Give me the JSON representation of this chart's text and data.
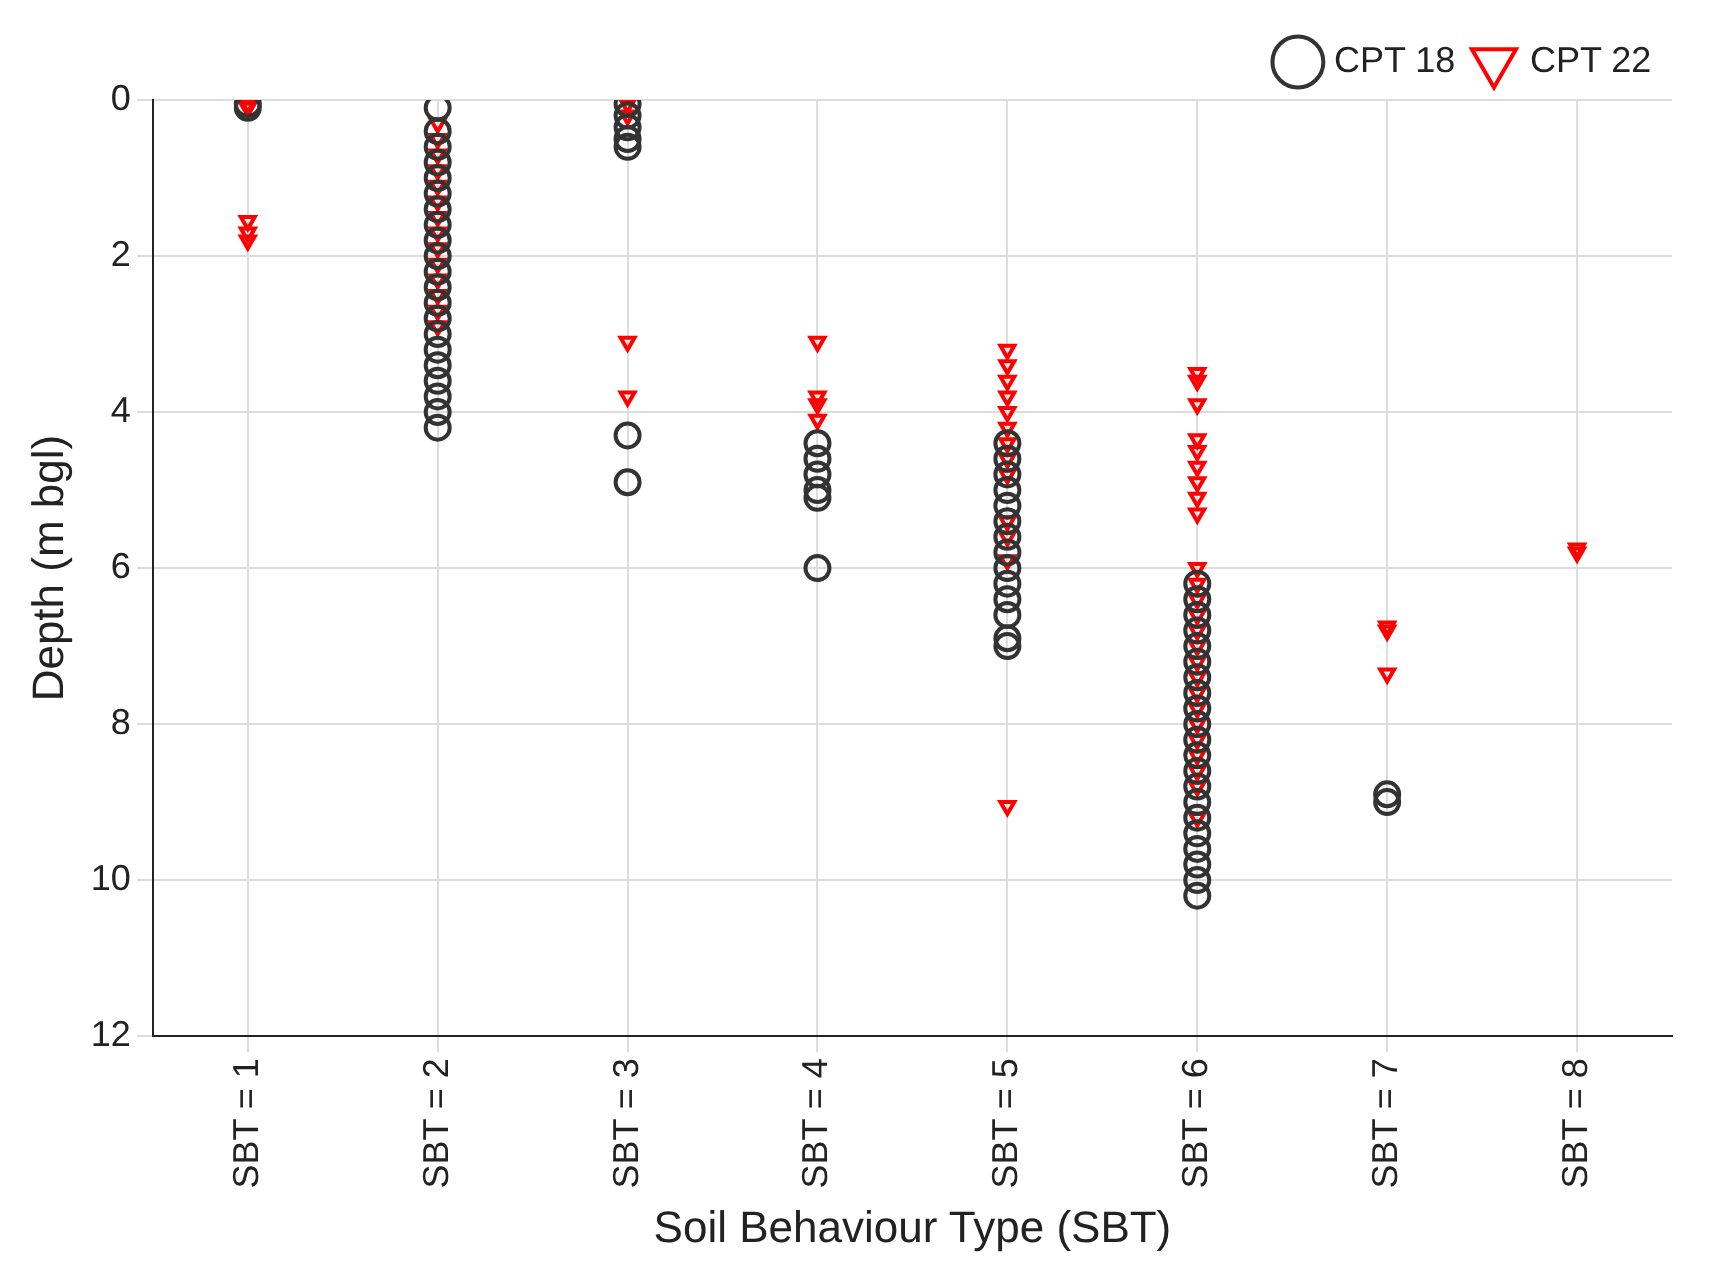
{
  "chart_data": {
    "type": "scatter",
    "xlabel": "Soil Behaviour Type (SBT)",
    "ylabel": "Depth (m bgl)",
    "categories": [
      "SBT = 1",
      "SBT = 2",
      "SBT = 3",
      "SBT = 4",
      "SBT = 5",
      "SBT = 6",
      "SBT = 7",
      "SBT = 8"
    ],
    "ylim": [
      12,
      0
    ],
    "yticks": [
      0,
      2,
      4,
      6,
      8,
      10,
      12
    ],
    "grid": true,
    "legend": "top right",
    "series": [
      {
        "name": "CPT 18",
        "color": "#333333",
        "marker": "circle",
        "x": [
          "SBT = 1",
          "SBT = 1",
          "SBT = 2",
          "SBT = 2",
          "SBT = 2",
          "SBT = 2",
          "SBT = 2",
          "SBT = 2",
          "SBT = 2",
          "SBT = 2",
          "SBT = 2",
          "SBT = 2",
          "SBT = 2",
          "SBT = 2",
          "SBT = 2",
          "SBT = 2",
          "SBT = 2",
          "SBT = 2",
          "SBT = 2",
          "SBT = 2",
          "SBT = 2",
          "SBT = 2",
          "SBT = 2",
          "SBT = 3",
          "SBT = 3",
          "SBT = 3",
          "SBT = 3",
          "SBT = 3",
          "SBT = 3",
          "SBT = 3",
          "SBT = 4",
          "SBT = 4",
          "SBT = 4",
          "SBT = 4",
          "SBT = 4",
          "SBT = 4",
          "SBT = 5",
          "SBT = 5",
          "SBT = 5",
          "SBT = 5",
          "SBT = 5",
          "SBT = 5",
          "SBT = 5",
          "SBT = 5",
          "SBT = 5",
          "SBT = 5",
          "SBT = 5",
          "SBT = 5",
          "SBT = 5",
          "SBT = 5",
          "SBT = 6",
          "SBT = 6",
          "SBT = 6",
          "SBT = 6",
          "SBT = 6",
          "SBT = 6",
          "SBT = 6",
          "SBT = 6",
          "SBT = 6",
          "SBT = 6",
          "SBT = 6",
          "SBT = 6",
          "SBT = 6",
          "SBT = 6",
          "SBT = 6",
          "SBT = 6",
          "SBT = 6",
          "SBT = 6",
          "SBT = 6",
          "SBT = 6",
          "SBT = 6",
          "SBT = 7",
          "SBT = 7"
        ],
        "values": [
          0.05,
          0.1,
          0.1,
          0.4,
          0.6,
          0.8,
          1.0,
          1.2,
          1.4,
          1.6,
          1.8,
          2.0,
          2.2,
          2.4,
          2.6,
          2.8,
          3.0,
          3.2,
          3.4,
          3.6,
          3.8,
          4.0,
          4.2,
          0.05,
          0.2,
          0.35,
          0.5,
          0.6,
          4.3,
          4.9,
          4.4,
          4.6,
          4.8,
          5.0,
          5.1,
          6.0,
          4.4,
          4.6,
          4.8,
          5.0,
          5.2,
          5.4,
          5.6,
          5.8,
          6.0,
          6.2,
          6.4,
          6.6,
          6.9,
          7.0,
          6.2,
          6.4,
          6.6,
          6.8,
          7.0,
          7.2,
          7.4,
          7.6,
          7.8,
          8.0,
          8.2,
          8.4,
          8.6,
          8.8,
          9.0,
          9.2,
          9.4,
          9.6,
          9.8,
          10.0,
          10.2,
          8.9,
          9.0
        ]
      },
      {
        "name": "CPT 22",
        "color": "#ff0000",
        "marker": "triangle",
        "x": [
          "SBT = 1",
          "SBT = 1",
          "SBT = 1",
          "SBT = 1",
          "SBT = 1",
          "SBT = 2",
          "SBT = 2",
          "SBT = 2",
          "SBT = 2",
          "SBT = 2",
          "SBT = 2",
          "SBT = 2",
          "SBT = 2",
          "SBT = 2",
          "SBT = 2",
          "SBT = 2",
          "SBT = 2",
          "SBT = 2",
          "SBT = 2",
          "SBT = 3",
          "SBT = 3",
          "SBT = 3",
          "SBT = 3",
          "SBT = 4",
          "SBT = 4",
          "SBT = 4",
          "SBT = 4",
          "SBT = 5",
          "SBT = 5",
          "SBT = 5",
          "SBT = 5",
          "SBT = 5",
          "SBT = 5",
          "SBT = 5",
          "SBT = 5",
          "SBT = 5",
          "SBT = 5",
          "SBT = 5",
          "SBT = 5",
          "SBT = 5",
          "SBT = 6",
          "SBT = 6",
          "SBT = 6",
          "SBT = 6",
          "SBT = 6",
          "SBT = 6",
          "SBT = 6",
          "SBT = 6",
          "SBT = 6",
          "SBT = 6",
          "SBT = 6",
          "SBT = 6",
          "SBT = 6",
          "SBT = 6",
          "SBT = 6",
          "SBT = 6",
          "SBT = 6",
          "SBT = 6",
          "SBT = 6",
          "SBT = 6",
          "SBT = 6",
          "SBT = 6",
          "SBT = 6",
          "SBT = 6",
          "SBT = 6",
          "SBT = 7",
          "SBT = 7",
          "SBT = 7",
          "SBT = 8",
          "SBT = 8"
        ],
        "values": [
          0.05,
          0.1,
          1.55,
          1.7,
          1.8,
          0.3,
          0.5,
          0.7,
          0.9,
          1.1,
          1.3,
          1.5,
          1.7,
          1.9,
          2.1,
          2.3,
          2.5,
          2.7,
          2.9,
          0.05,
          0.2,
          3.1,
          3.8,
          3.1,
          3.8,
          3.9,
          4.1,
          3.2,
          3.4,
          3.6,
          3.8,
          4.0,
          4.2,
          4.4,
          4.6,
          4.8,
          5.4,
          5.6,
          5.9,
          9.05,
          3.5,
          3.6,
          3.9,
          4.35,
          4.5,
          4.7,
          4.9,
          5.1,
          5.3,
          6.0,
          6.2,
          6.4,
          6.6,
          6.8,
          7.0,
          7.2,
          7.4,
          7.6,
          7.8,
          8.0,
          8.2,
          8.4,
          8.6,
          8.8,
          9.2,
          6.75,
          6.8,
          7.35,
          5.75,
          5.8
        ]
      }
    ]
  }
}
